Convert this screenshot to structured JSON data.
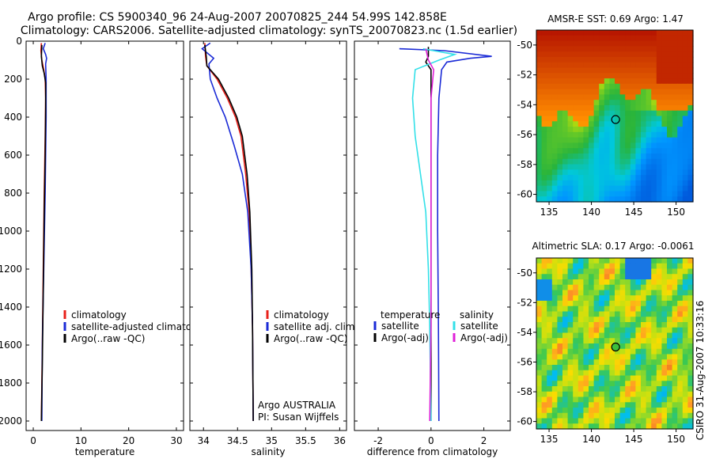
{
  "title_line1": "Argo profile: CS 5900340_96 24-Aug-2007 20070825_244 54.99S 142.858E",
  "title_line2": "Climatology: CARS2006. Satellite-adjusted climatology: synTS_20070823.nc (1.5d earlier)",
  "side_stamp": "CSIRO 31-Aug-2007 10:33:16",
  "colors": {
    "clim": "#e8201a",
    "sat": "#1a2ad6",
    "argo": "#000000",
    "sal_sat": "#33e0e8",
    "sal_argo": "#e020d8"
  },
  "chart_data": [
    {
      "type": "line",
      "id": "temperature",
      "xlabel": "temperature",
      "xlim": [
        -1.5,
        31.5
      ],
      "ylim": [
        0,
        2050
      ],
      "xticks": [
        0,
        10,
        20,
        30
      ],
      "yticks": [
        0,
        200,
        400,
        600,
        800,
        1000,
        1200,
        1400,
        1600,
        1800,
        2000
      ],
      "legend": [
        "climatology",
        "satellite-adjusted climatology",
        "Argo(..raw -QC)"
      ],
      "series": [
        {
          "name": "climatology",
          "color": "clim",
          "points": [
            [
              1.7,
              10
            ],
            [
              1.6,
              50
            ],
            [
              1.8,
              100
            ],
            [
              2.2,
              150
            ],
            [
              2.5,
              200
            ],
            [
              2.6,
              300
            ],
            [
              2.5,
              500
            ],
            [
              2.3,
              800
            ],
            [
              2.1,
              1200
            ],
            [
              1.9,
              1600
            ],
            [
              1.7,
              2000
            ]
          ]
        },
        {
          "name": "satellite-adjusted climatology",
          "color": "sat",
          "points": [
            [
              2.5,
              10
            ],
            [
              2.1,
              40
            ],
            [
              2.6,
              70
            ],
            [
              2.8,
              90
            ],
            [
              2.6,
              120
            ],
            [
              2.7,
              200
            ],
            [
              2.7,
              400
            ],
            [
              2.5,
              800
            ],
            [
              2.2,
              1200
            ],
            [
              1.9,
              1600
            ],
            [
              1.8,
              2000
            ]
          ]
        },
        {
          "name": "Argo(..raw -QC)",
          "color": "argo",
          "points": [
            [
              1.8,
              20
            ],
            [
              1.7,
              80
            ],
            [
              1.9,
              130
            ],
            [
              2.3,
              170
            ],
            [
              2.6,
              220
            ],
            [
              2.6,
              350
            ],
            [
              2.5,
              600
            ],
            [
              2.3,
              900
            ],
            [
              2.1,
              1300
            ],
            [
              1.9,
              1700
            ],
            [
              1.7,
              2000
            ]
          ]
        }
      ]
    },
    {
      "type": "line",
      "id": "salinity",
      "xlabel": "salinity",
      "xlim": [
        33.8,
        36.1
      ],
      "ylim": [
        0,
        2050
      ],
      "xticks": [
        34,
        34.5,
        35,
        35.5,
        36
      ],
      "xticklabels": [
        "34",
        "34.5",
        "35",
        "35.5",
        "36"
      ],
      "yticks": [
        0,
        200,
        400,
        600,
        800,
        1000,
        1200,
        1400,
        1600,
        1800,
        2000
      ],
      "legend": [
        "climatology",
        "satellite adj. clim.",
        "Argo(..raw -QC)"
      ],
      "annotations": [
        "Argo AUSTRALIA",
        "PI: Susan Wijffels"
      ],
      "series": [
        {
          "name": "climatology",
          "color": "clim",
          "points": [
            [
              34.02,
              10
            ],
            [
              34.03,
              80
            ],
            [
              34.05,
              130
            ],
            [
              34.2,
              200
            ],
            [
              34.35,
              300
            ],
            [
              34.47,
              400
            ],
            [
              34.55,
              500
            ],
            [
              34.62,
              700
            ],
            [
              34.67,
              900
            ],
            [
              34.7,
              1200
            ],
            [
              34.72,
              1500
            ],
            [
              34.73,
              2000
            ]
          ]
        },
        {
          "name": "satellite adj. clim.",
          "color": "sat",
          "points": [
            [
              34.1,
              10
            ],
            [
              33.98,
              40
            ],
            [
              34.15,
              90
            ],
            [
              34.08,
              120
            ],
            [
              34.1,
              200
            ],
            [
              34.2,
              300
            ],
            [
              34.32,
              400
            ],
            [
              34.45,
              550
            ],
            [
              34.57,
              700
            ],
            [
              34.65,
              900
            ],
            [
              34.7,
              1200
            ],
            [
              34.72,
              1500
            ],
            [
              34.73,
              2000
            ]
          ]
        },
        {
          "name": "Argo(..raw -QC)",
          "color": "argo",
          "points": [
            [
              34.02,
              20
            ],
            [
              34.04,
              80
            ],
            [
              34.05,
              130
            ],
            [
              34.22,
              200
            ],
            [
              34.37,
              300
            ],
            [
              34.49,
              400
            ],
            [
              34.57,
              500
            ],
            [
              34.64,
              700
            ],
            [
              34.68,
              900
            ],
            [
              34.71,
              1200
            ],
            [
              34.72,
              1500
            ],
            [
              34.73,
              2000
            ]
          ]
        }
      ]
    },
    {
      "type": "line",
      "id": "difference",
      "xlabel": "difference from climatology",
      "xlim": [
        -2.9,
        3.0
      ],
      "ylim": [
        0,
        2050
      ],
      "xticks": [
        -2,
        0,
        2
      ],
      "yticks": [
        0,
        200,
        400,
        600,
        800,
        1000,
        1200,
        1400,
        1600,
        1800,
        2000
      ],
      "legend_left_title": "temperature",
      "legend_right_title": "salinity",
      "legend_left": [
        "satellite",
        "Argo(-adj)"
      ],
      "legend_right": [
        "satellite",
        "Argo(-adj)"
      ],
      "series": [
        {
          "name": "temperature satellite",
          "color": "sat",
          "points": [
            [
              -1.2,
              40
            ],
            [
              0.5,
              50
            ],
            [
              2.3,
              80
            ],
            [
              1.5,
              90
            ],
            [
              0.6,
              110
            ],
            [
              0.4,
              150
            ],
            [
              0.3,
              300
            ],
            [
              0.25,
              600
            ],
            [
              0.25,
              1000
            ],
            [
              0.28,
              1500
            ],
            [
              0.3,
              2000
            ]
          ]
        },
        {
          "name": "temperature Argo(-adj)",
          "color": "argo",
          "points": [
            [
              -0.1,
              30
            ],
            [
              -0.1,
              80
            ],
            [
              -0.2,
              110
            ],
            [
              0,
              150
            ],
            [
              0,
              200
            ],
            [
              0,
              500
            ],
            [
              0,
              1000
            ],
            [
              0,
              1500
            ],
            [
              0,
              2000
            ]
          ]
        },
        {
          "name": "salinity satellite",
          "color": "sal_sat",
          "points": [
            [
              -0.3,
              40
            ],
            [
              0.9,
              70
            ],
            [
              0.3,
              100
            ],
            [
              -0.6,
              150
            ],
            [
              -0.7,
              300
            ],
            [
              -0.6,
              500
            ],
            [
              -0.4,
              700
            ],
            [
              -0.2,
              900
            ],
            [
              -0.1,
              1200
            ],
            [
              -0.05,
              1500
            ],
            [
              0,
              2000
            ]
          ]
        },
        {
          "name": "salinity Argo(-adj)",
          "color": "sal_argo",
          "points": [
            [
              -0.2,
              40
            ],
            [
              -0.1,
              100
            ],
            [
              0.1,
              150
            ],
            [
              0,
              300
            ],
            [
              0,
              600
            ],
            [
              0,
              1000
            ],
            [
              0,
              1500
            ],
            [
              -0.05,
              2000
            ]
          ]
        }
      ]
    },
    {
      "type": "heatmap",
      "id": "sst",
      "title": "AMSR-E SST: 0.69 Argo: 1.47",
      "xlim": [
        133.5,
        152
      ],
      "ylim": [
        -60.5,
        -49
      ],
      "xticks": [
        135,
        140,
        145,
        150
      ],
      "yticks": [
        -50,
        -52,
        -54,
        -56,
        -58,
        -60
      ],
      "marker": [
        142.858,
        -54.99
      ]
    },
    {
      "type": "heatmap",
      "id": "sla",
      "title": "Altimetric SLA: 0.17 Argo: -0.0061",
      "xlim": [
        133.5,
        152
      ],
      "ylim": [
        -60.5,
        -49
      ],
      "xticks": [
        135,
        140,
        145,
        150
      ],
      "yticks": [
        -50,
        -52,
        -54,
        -56,
        -58,
        -60
      ],
      "marker": [
        142.858,
        -54.99
      ]
    }
  ]
}
